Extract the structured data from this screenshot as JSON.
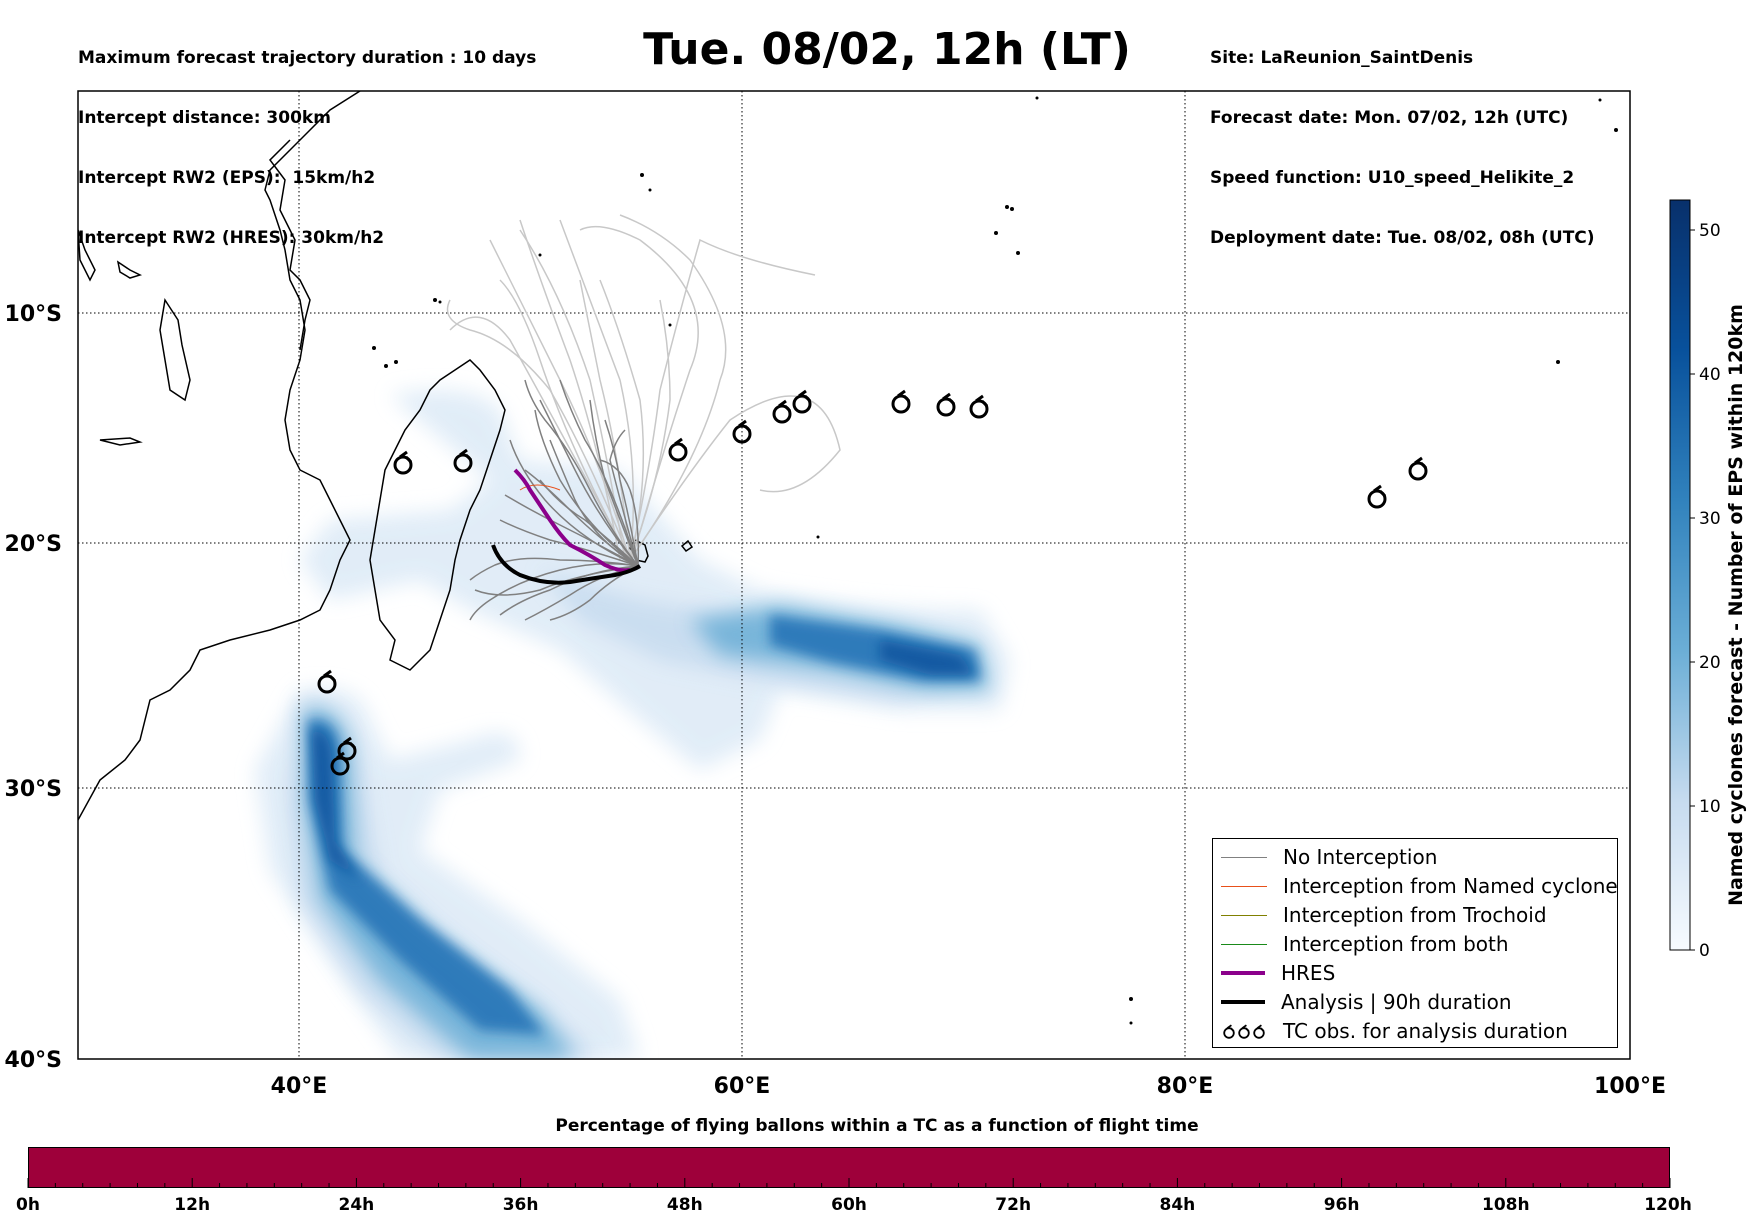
{
  "header": {
    "left_lines": [
      "Maximum forecast trajectory duration : 10 days",
      "Intercept distance: 300km",
      "Intercept RW2 (EPS):  15km/h2",
      "Intercept RW2 (HRES): 30km/h2"
    ],
    "title": "Tue. 08/02, 12h (LT)",
    "right_lines": [
      "Site: LaReunion_SaintDenis",
      "Forecast date: Mon. 07/02, 12h (UTC)",
      "Speed function: U10_speed_Helikite_2",
      "Deployment date: Tue. 08/02, 08h (UTC)"
    ]
  },
  "map": {
    "lon_labels": [
      "40°E",
      "60°E",
      "80°E",
      "100°E"
    ],
    "lat_labels": [
      "10°S",
      "20°S",
      "30°S",
      "40°S"
    ],
    "colorbar_label": "Named cyclones forecast - Number of EPS within 120km",
    "colorbar_ticks": [
      "0",
      "10",
      "20",
      "30",
      "40",
      "50"
    ],
    "colors": {
      "no_interception": "#808080",
      "interception_named": "#e8501a",
      "interception_trochoid": "#808000",
      "interception_both": "#1a8a1a",
      "hres": "#8b008b",
      "analysis": "#000000",
      "density_high": "#08306b",
      "density_low": "#deebf7"
    }
  },
  "legend": {
    "items": [
      {
        "label": "No Interception",
        "icon": "gray-line"
      },
      {
        "label": "Interception from Named cyclone",
        "icon": "orange-line"
      },
      {
        "label": "Interception from Trochoid",
        "icon": "olive-line"
      },
      {
        "label": "Interception from both",
        "icon": "green-line"
      },
      {
        "label": "HRES",
        "icon": "purple-thick-line"
      },
      {
        "label": "Analysis | 90h duration",
        "icon": "black-thick-line"
      },
      {
        "label": "TC obs. for analysis duration",
        "icon": "cyclone-symbols"
      }
    ]
  },
  "bottom": {
    "title": "Percentage of flying ballons within a TC as a function of flight time",
    "ticks": [
      "0h",
      "12h",
      "24h",
      "36h",
      "48h",
      "60h",
      "72h",
      "84h",
      "96h",
      "108h",
      "120h"
    ],
    "bar_color": "#9e003a"
  }
}
